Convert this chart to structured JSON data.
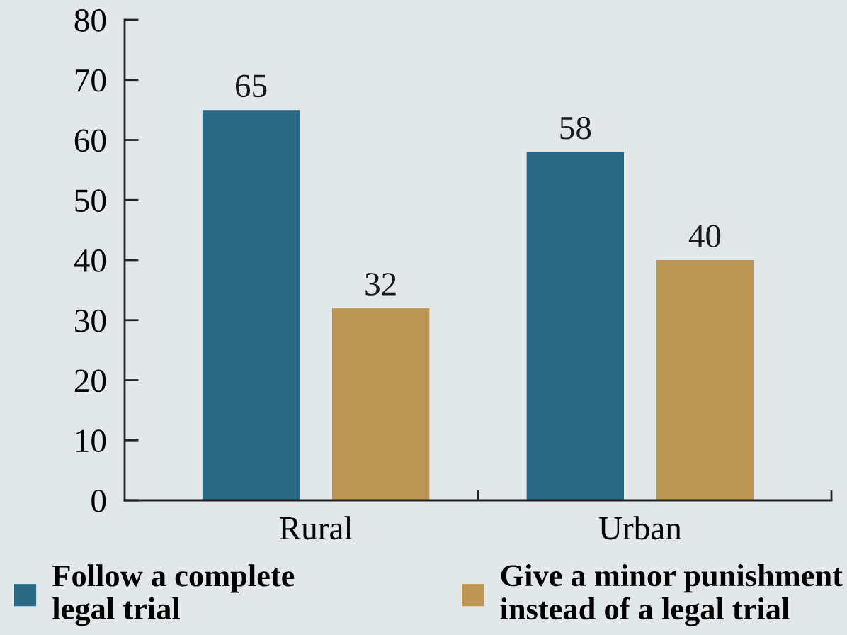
{
  "chart_data": {
    "type": "bar",
    "categories": [
      "Rural",
      "Urban"
    ],
    "series": [
      {
        "name": "Follow a complete legal trial",
        "color": "#2b6883",
        "values": [
          65,
          58
        ]
      },
      {
        "name": "Give a minor punishment instead of a legal trial",
        "color": "#bc9753",
        "values": [
          32,
          40
        ]
      }
    ],
    "ylim": [
      0,
      80
    ],
    "yticks": [
      0,
      10,
      20,
      30,
      40,
      50,
      60,
      70,
      80
    ],
    "data_labels": true,
    "legend": "bottom",
    "grid": false
  }
}
